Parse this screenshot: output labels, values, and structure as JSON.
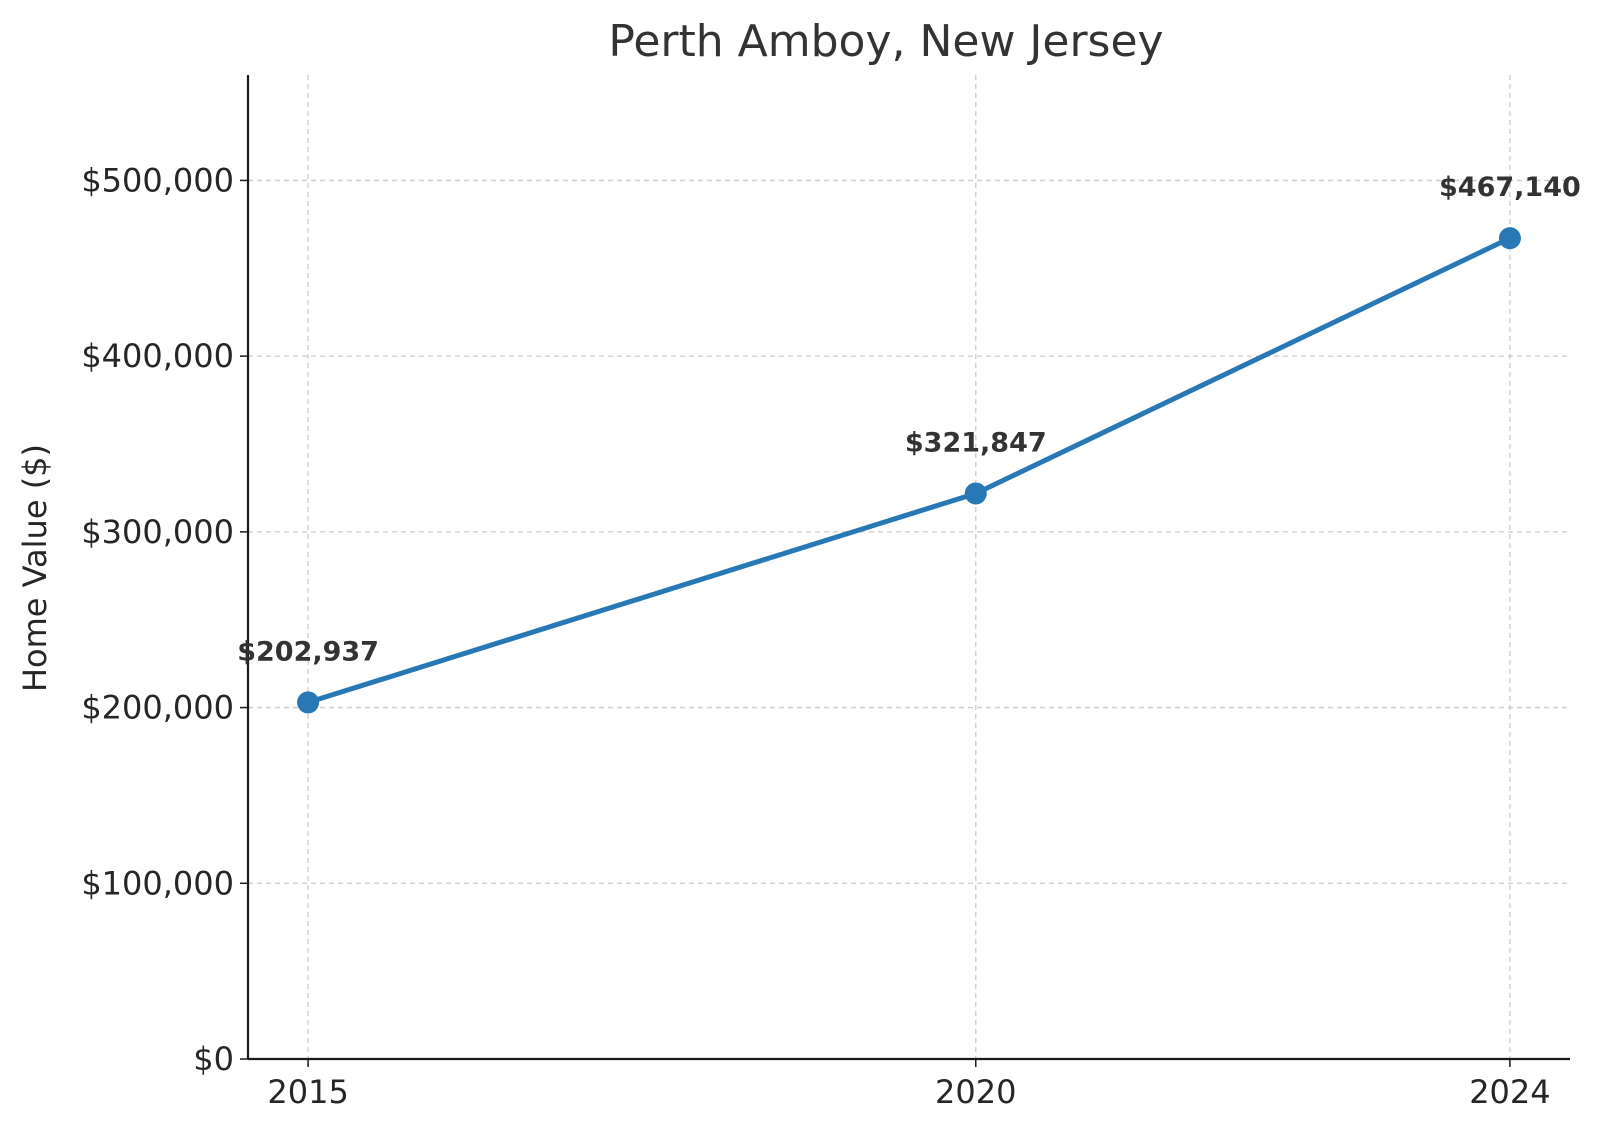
{
  "chart_data": {
    "type": "line",
    "title": "Perth Amboy, New Jersey",
    "xlabel": "",
    "ylabel": "Home Value ($)",
    "x": [
      "2015",
      "2020",
      "2024"
    ],
    "x_values": [
      2015,
      2020,
      2024
    ],
    "values": [
      202937,
      321847,
      467140
    ],
    "data_labels": [
      "$202,937",
      "$321,847",
      "$467,140"
    ],
    "yticks": [
      0,
      100000,
      200000,
      300000,
      400000,
      500000
    ],
    "ytick_labels": [
      "$0",
      "$100,000",
      "$200,000",
      "$300,000",
      "$400,000",
      "$500,000"
    ],
    "ylim": [
      0,
      560000
    ],
    "xlim": [
      2014.55,
      2024.45
    ],
    "grid": true,
    "legend": "none",
    "colors": {
      "line": "#2878b5",
      "text": "#333333",
      "grid": "#cccccc",
      "axis": "#1a1a1a"
    }
  }
}
